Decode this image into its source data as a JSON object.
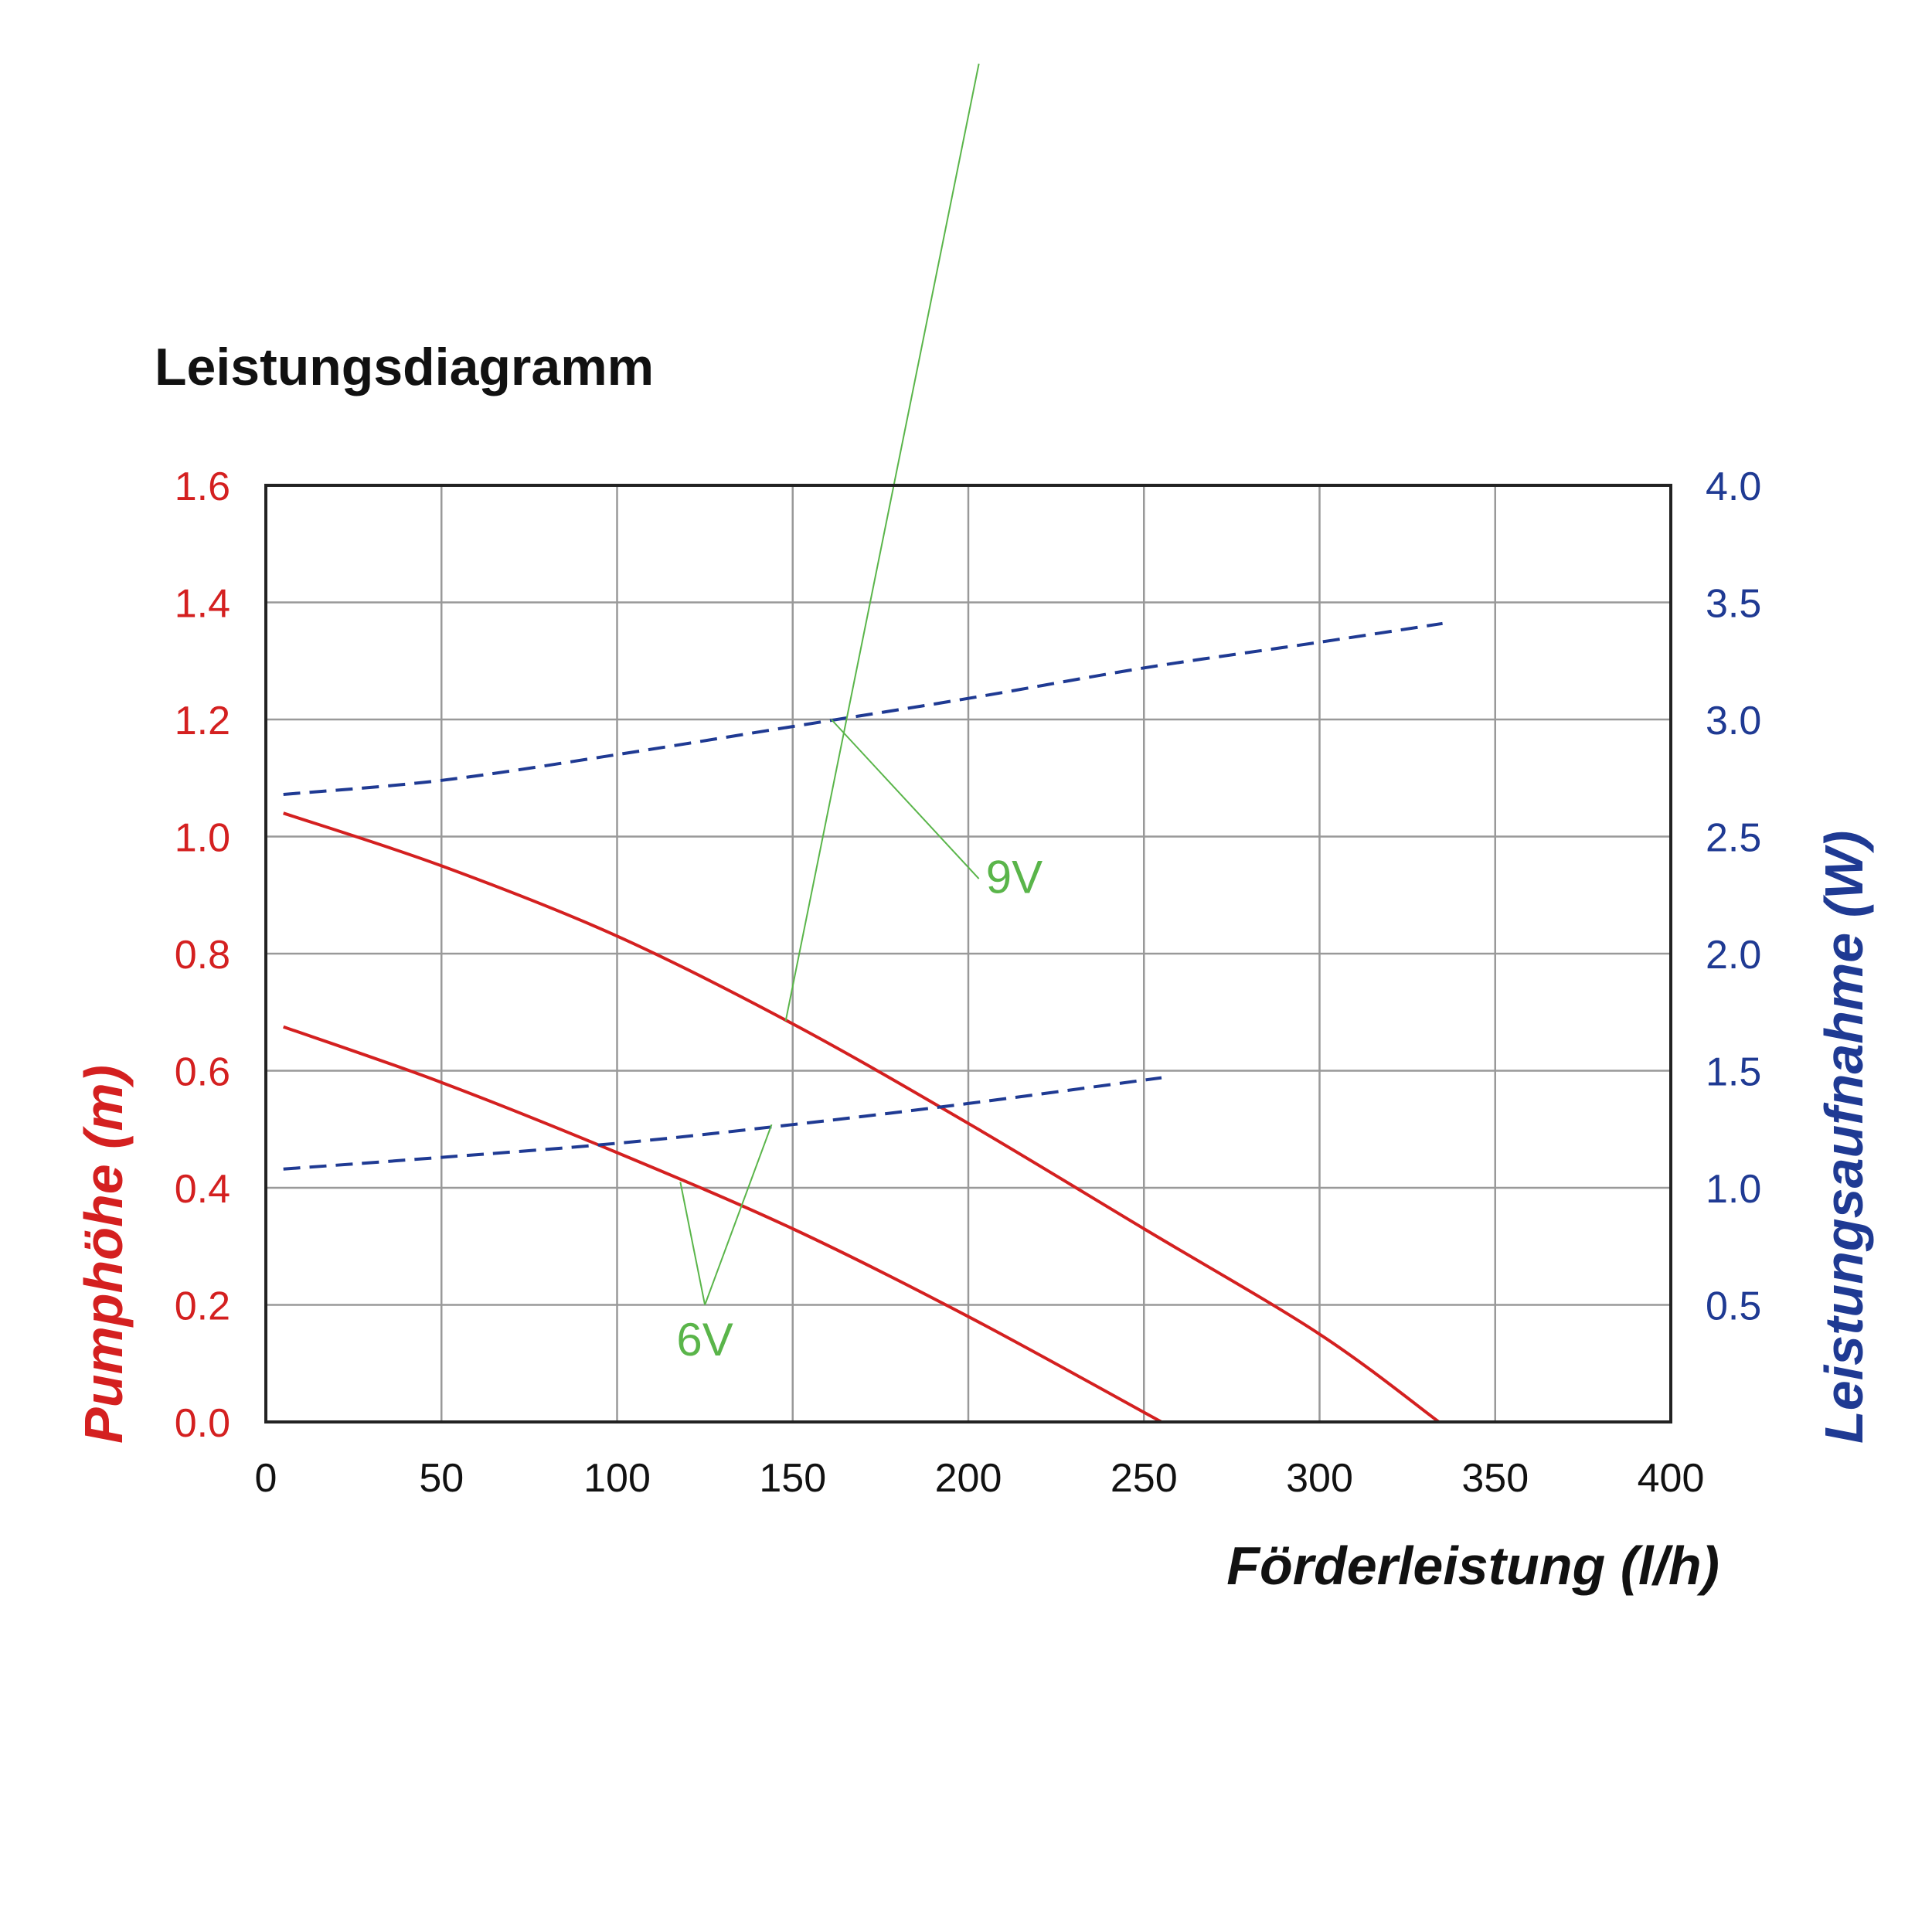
{
  "chart_data": {
    "type": "line",
    "title": "Leistungsdiagramm",
    "xlabel": "Förderleistung (l/h)",
    "ylabel_left": "Pumphöhe (m)",
    "ylabel_right": "Leistungsaufnahme (W)",
    "xlim": [
      0,
      400
    ],
    "ylim_left": [
      0,
      1.6
    ],
    "ylim_right": [
      0,
      4.0
    ],
    "x_ticks": [
      "0",
      "50",
      "100",
      "150",
      "200",
      "250",
      "300",
      "350",
      "400"
    ],
    "y_ticks_left": [
      "0.0",
      "0.2",
      "0.4",
      "0.6",
      "0.8",
      "1.0",
      "1.2",
      "1.4",
      "1.6"
    ],
    "y_ticks_right": [
      "0.5",
      "1.0",
      "1.5",
      "2.0",
      "2.5",
      "3.0",
      "3.5",
      "4.0"
    ],
    "grid": true,
    "colors": {
      "left_axis": "#d42020",
      "right_axis": "#1f3a93",
      "head_curve": "#d42020",
      "power_curve": "#1f3a93",
      "annotation": "#5ab54a",
      "grid": "#999999"
    },
    "series": [
      {
        "axis": "left",
        "style": "solid",
        "x": [
          5,
          50,
          100,
          150,
          200,
          250,
          300,
          334
        ],
        "y": [
          1.04,
          0.95,
          0.83,
          0.68,
          0.51,
          0.33,
          0.15,
          0.0
        ]
      },
      {
        "axis": "left",
        "style": "solid",
        "x": [
          5,
          50,
          100,
          150,
          200,
          255
        ],
        "y": [
          0.675,
          0.58,
          0.46,
          0.33,
          0.18,
          0.0
        ]
      },
      {
        "axis": "right",
        "style": "dashed",
        "x": [
          5,
          50,
          100,
          150,
          200,
          250,
          300,
          335
        ],
        "y": [
          2.68,
          2.74,
          2.85,
          2.97,
          3.09,
          3.22,
          3.33,
          3.41
        ]
      },
      {
        "axis": "right",
        "style": "dashed",
        "x": [
          5,
          50,
          100,
          150,
          200,
          255
        ],
        "y": [
          1.08,
          1.13,
          1.19,
          1.27,
          1.36,
          1.47
        ]
      }
    ],
    "annotations": [
      {
        "text": "9V",
        "label_at": [
          205,
          0.93
        ],
        "leader_axes": [
          "right",
          "left"
        ],
        "leaders": [
          [
            [
              161,
              3.0
            ],
            [
              203,
              2.32
            ]
          ],
          [
            [
              203,
              2.32
            ],
            [
              148,
              0.685
            ]
          ]
        ]
      },
      {
        "text": "6V",
        "label_at": [
          125,
          0.14
        ],
        "leader_axes": [
          "left",
          "right"
        ],
        "leaders": [
          [
            [
              118,
              0.41
            ],
            [
              125,
              0.2
            ]
          ],
          [
            [
              125,
              0.5
            ],
            [
              144,
              1.27
            ]
          ]
        ]
      }
    ]
  }
}
